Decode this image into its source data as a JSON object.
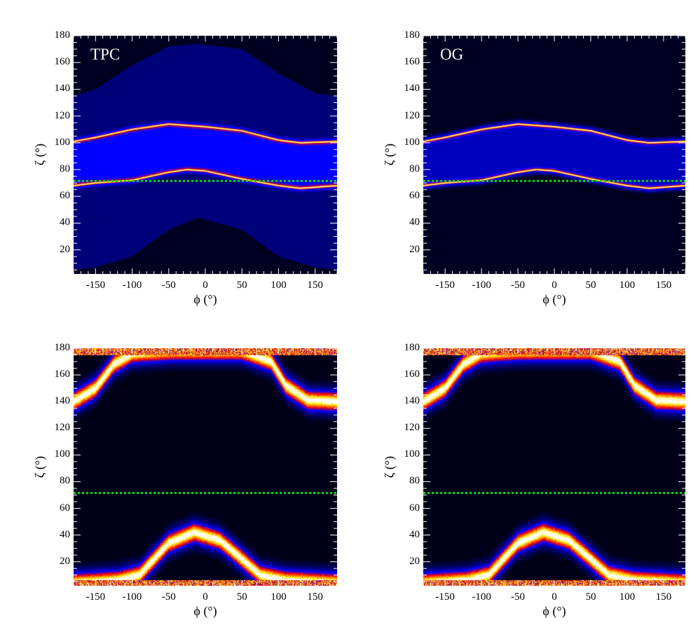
{
  "chart_data": [
    {
      "id": "top-left",
      "type": "heatmap",
      "panel_label": "TPC",
      "xlabel": "ϕ (°)",
      "ylabel": "ζ (°)",
      "xlim": [
        -180,
        180
      ],
      "ylim": [
        2,
        180
      ],
      "xticks": [
        -150,
        -100,
        -50,
        0,
        50,
        100,
        150
      ],
      "yticks": [
        20,
        40,
        60,
        80,
        100,
        120,
        140,
        160,
        180
      ],
      "reference_line": {
        "zeta": 71.5,
        "color": "#00e000",
        "style": "dotted"
      },
      "mode": "caustic",
      "ridges": [
        {
          "name": "upper",
          "phi": [
            -180,
            -150,
            -100,
            -50,
            0,
            50,
            100,
            130,
            180
          ],
          "zeta": [
            101,
            104,
            110,
            114,
            112,
            109,
            102,
            100,
            101
          ]
        },
        {
          "name": "lower",
          "phi": [
            -180,
            -150,
            -100,
            -50,
            -25,
            0,
            50,
            100,
            130,
            180
          ],
          "zeta": [
            68,
            70,
            72,
            78,
            80,
            79,
            73,
            68,
            66,
            68
          ]
        }
      ],
      "envelope": {
        "phi": [
          -180,
          -150,
          -100,
          -50,
          -10,
          50,
          100,
          150,
          180
        ],
        "upper": [
          135,
          140,
          158,
          172,
          174,
          170,
          152,
          137,
          135
        ],
        "lower": [
          5,
          7,
          15,
          35,
          44,
          35,
          15,
          7,
          5
        ]
      }
    },
    {
      "id": "top-right",
      "type": "heatmap",
      "panel_label": "OG",
      "xlabel": "ϕ (°)",
      "ylabel": "ζ (°)",
      "xlim": [
        -180,
        180
      ],
      "ylim": [
        2,
        180
      ],
      "xticks": [
        -150,
        -100,
        -50,
        0,
        50,
        100,
        150
      ],
      "yticks": [
        20,
        40,
        60,
        80,
        100,
        120,
        140,
        160,
        180
      ],
      "reference_line": {
        "zeta": 71.5,
        "color": "#00e000",
        "style": "dotted"
      },
      "mode": "caustic",
      "ridges": [
        {
          "name": "upper",
          "phi": [
            -180,
            -150,
            -100,
            -50,
            0,
            50,
            100,
            130,
            180
          ],
          "zeta": [
            101,
            104,
            110,
            114,
            112,
            109,
            102,
            100,
            101
          ]
        },
        {
          "name": "lower",
          "phi": [
            -180,
            -150,
            -100,
            -50,
            -25,
            0,
            50,
            100,
            130,
            180
          ],
          "zeta": [
            68,
            70,
            72,
            78,
            80,
            79,
            73,
            68,
            66,
            68
          ]
        }
      ]
    },
    {
      "id": "bottom-left",
      "type": "heatmap",
      "panel_label": "",
      "xlabel": "ϕ (°)",
      "ylabel": "ζ (°)",
      "xlim": [
        -180,
        180
      ],
      "ylim": [
        2,
        180
      ],
      "xticks": [
        -150,
        -100,
        -50,
        0,
        50,
        100,
        150
      ],
      "yticks": [
        20,
        40,
        60,
        80,
        100,
        120,
        140,
        160,
        180
      ],
      "reference_line": {
        "zeta": 71.5,
        "color": "#00e000",
        "style": "dotted"
      },
      "mode": "broad",
      "ridges": [
        {
          "name": "upper",
          "phi": [
            -180,
            -150,
            -125,
            -100,
            -50,
            0,
            50,
            90,
            110,
            140,
            180
          ],
          "zeta": [
            140,
            150,
            168,
            176,
            178,
            178,
            178,
            170,
            152,
            141,
            140
          ]
        },
        {
          "name": "lower",
          "phi": [
            -180,
            -120,
            -90,
            -70,
            -50,
            -15,
            20,
            50,
            75,
            110,
            180
          ],
          "zeta": [
            4,
            6,
            10,
            22,
            34,
            42,
            36,
            22,
            10,
            6,
            4
          ]
        }
      ]
    },
    {
      "id": "bottom-right",
      "type": "heatmap",
      "panel_label": "",
      "xlabel": "ϕ (°)",
      "ylabel": "ζ (°)",
      "xlim": [
        -180,
        180
      ],
      "ylim": [
        2,
        180
      ],
      "xticks": [
        -150,
        -100,
        -50,
        0,
        50,
        100,
        150
      ],
      "yticks": [
        20,
        40,
        60,
        80,
        100,
        120,
        140,
        160,
        180
      ],
      "reference_line": {
        "zeta": 71.5,
        "color": "#00e000",
        "style": "dotted"
      },
      "mode": "broad",
      "ridges": [
        {
          "name": "upper",
          "phi": [
            -180,
            -150,
            -125,
            -100,
            -50,
            0,
            50,
            90,
            110,
            140,
            180
          ],
          "zeta": [
            140,
            150,
            168,
            176,
            178,
            178,
            178,
            170,
            152,
            141,
            140
          ]
        },
        {
          "name": "lower",
          "phi": [
            -180,
            -120,
            -90,
            -70,
            -50,
            -15,
            20,
            50,
            75,
            110,
            180
          ],
          "zeta": [
            4,
            6,
            10,
            22,
            34,
            42,
            36,
            22,
            10,
            6,
            4
          ]
        }
      ]
    }
  ]
}
